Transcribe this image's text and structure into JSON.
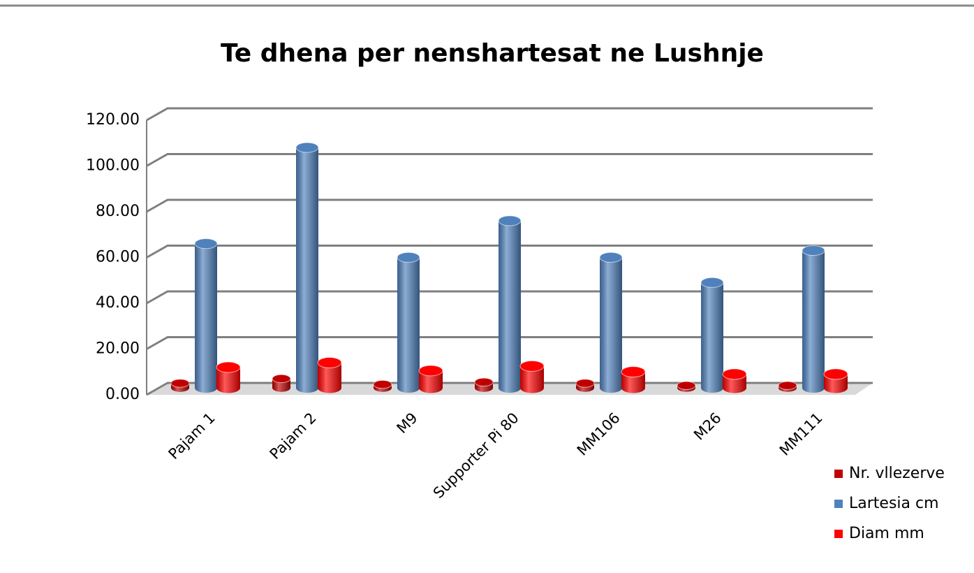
{
  "chart_data": {
    "type": "bar",
    "title": "Te dhena per nenshartesat ne Lushnje",
    "categories": [
      "Pajam 1",
      "Pajam 2",
      "M9",
      "Supporter Pi 80",
      "MM106",
      "M26",
      "MM111"
    ],
    "series": [
      {
        "name": "Nr. vllezerve",
        "color": "#c00000",
        "values": [
          2,
          4,
          1.5,
          2.5,
          2,
          1,
          1
        ]
      },
      {
        "name": "Lartesia cm",
        "color": "#4f81bd",
        "values": [
          63,
          105,
          57,
          73,
          57,
          46,
          60
        ]
      },
      {
        "name": "Diam mm",
        "color": "#ff0000",
        "values": [
          9,
          11,
          7.5,
          9.5,
          7,
          6,
          6
        ]
      }
    ],
    "ylim": [
      0,
      120
    ],
    "yticks": [
      {
        "value": 0,
        "label": "0.00"
      },
      {
        "value": 20,
        "label": "20.00"
      },
      {
        "value": 40,
        "label": "40.00"
      },
      {
        "value": 60,
        "label": "60.00"
      },
      {
        "value": 80,
        "label": "80.00"
      },
      {
        "value": 100,
        "label": "100.00"
      },
      {
        "value": 120,
        "label": "120.00"
      }
    ],
    "grid": true,
    "legend": "bottom-right"
  }
}
